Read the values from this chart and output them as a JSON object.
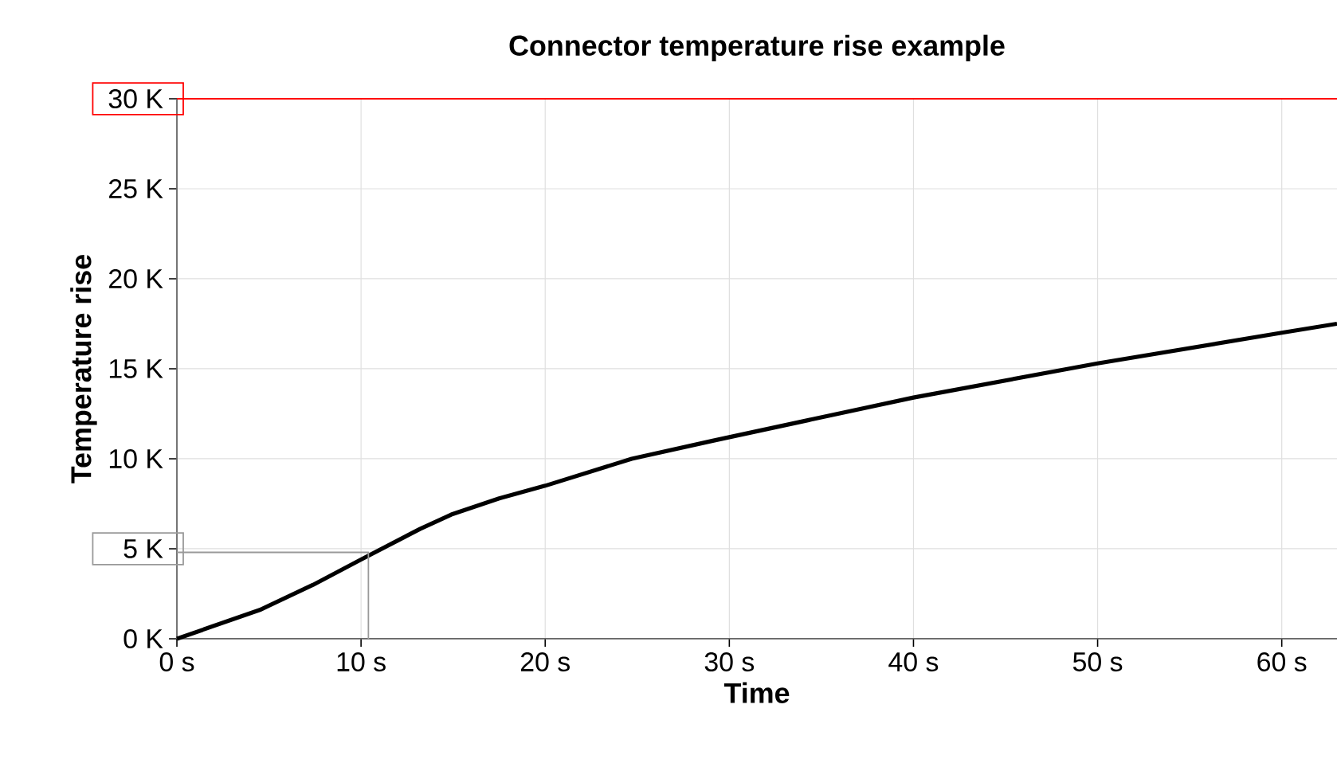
{
  "chart_data": {
    "type": "line",
    "title": "Connector temperature rise example",
    "xlabel": "Time",
    "ylabel": "Temperature rise",
    "xlim": [
      0,
      63
    ],
    "ylim": [
      0,
      30
    ],
    "xticks": [
      {
        "value": 0,
        "label": "0 s"
      },
      {
        "value": 10,
        "label": "10 s"
      },
      {
        "value": 20,
        "label": "20 s"
      },
      {
        "value": 30,
        "label": "30 s"
      },
      {
        "value": 40,
        "label": "40 s"
      },
      {
        "value": 50,
        "label": "50 s"
      },
      {
        "value": 60,
        "label": "60 s"
      }
    ],
    "yticks": [
      {
        "value": 0,
        "label": "0 K"
      },
      {
        "value": 5,
        "label": "5 K"
      },
      {
        "value": 10,
        "label": "10 K"
      },
      {
        "value": 15,
        "label": "15 K"
      },
      {
        "value": 20,
        "label": "20 K"
      },
      {
        "value": 25,
        "label": "25 K"
      },
      {
        "value": 30,
        "label": "30 K"
      }
    ],
    "grid": true,
    "series": [
      {
        "color": "#000000",
        "x": [
          0,
          4.5,
          7.4,
          10,
          13.2,
          14.9,
          17.5,
          20,
          24.7,
          29.1,
          30,
          40,
          50,
          60,
          63
        ],
        "values": [
          0,
          1.6,
          3.0,
          4.4,
          6.1,
          6.9,
          7.8,
          8.5,
          10.0,
          11.0,
          11.2,
          13.4,
          15.3,
          17.0,
          17.5
        ]
      },
      {
        "color": "#999999",
        "x": [
          0,
          10.4,
          10.4
        ],
        "values": [
          4.8,
          4.8,
          0
        ]
      }
    ],
    "ref_lines": [
      {
        "axis": "y",
        "value": 30,
        "color": "#ff0000"
      }
    ]
  }
}
